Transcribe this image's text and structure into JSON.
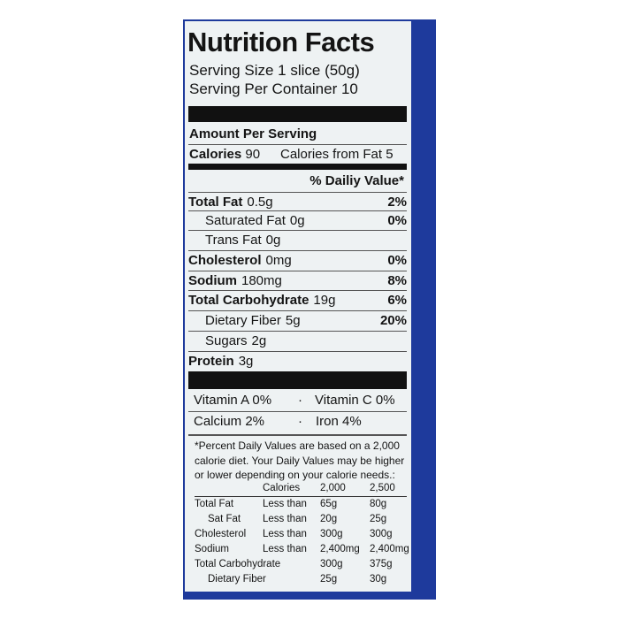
{
  "title": "Nutrition Facts",
  "serving_size": "Serving Size 1 slice (50g)",
  "servings_per_container": "Serving Per Container 10",
  "amount_per_serving": "Amount Per Serving",
  "calories_label": "Calories",
  "calories_value": "90",
  "calories_from_fat": "Calories from Fat 5",
  "daily_value_header": "% Dailiy Value*",
  "nutrients": [
    {
      "name": "Total Fat",
      "amount": "0.5g",
      "dv": "2%",
      "bold": true,
      "indent": false
    },
    {
      "name": "Saturated Fat",
      "amount": "0g",
      "dv": "0%",
      "bold": false,
      "indent": true
    },
    {
      "name": "Trans Fat",
      "amount": "0g",
      "dv": "",
      "bold": false,
      "indent": true
    },
    {
      "name": "Cholesterol",
      "amount": "0mg",
      "dv": "0%",
      "bold": true,
      "indent": false
    },
    {
      "name": "Sodium",
      "amount": "180mg",
      "dv": "8%",
      "bold": true,
      "indent": false
    },
    {
      "name": "Total Carbohydrate",
      "amount": "19g",
      "dv": "6%",
      "bold": true,
      "indent": false
    },
    {
      "name": "Dietary Fiber",
      "amount": "5g",
      "dv": "20%",
      "bold": false,
      "indent": true
    },
    {
      "name": "Sugars",
      "amount": "2g",
      "dv": "",
      "bold": false,
      "indent": true
    },
    {
      "name": "Protein",
      "amount": "3g",
      "dv": "",
      "bold": true,
      "indent": false
    }
  ],
  "vitamins": [
    [
      "Vitamin A 0%",
      "Vitamin C 0%"
    ],
    [
      "Calcium 2%",
      "Iron 4%"
    ]
  ],
  "footnote": [
    "*Percent Daily Values are based on a 2,000",
    "calorie diet. Your Daily Values may be higher",
    "or lower depending on your calorie needs.:"
  ],
  "dv_table": {
    "header": [
      "",
      "Calories",
      "2,000",
      "2,500"
    ],
    "rows": [
      [
        "Total Fat",
        "Less than",
        "65g",
        "80g"
      ],
      [
        "Sat Fat",
        "Less than",
        "20g",
        "25g"
      ],
      [
        "Cholesterol",
        "Less than",
        "300g",
        "300g"
      ],
      [
        "Sodium",
        "Less than",
        "2,400mg",
        "2,400mg"
      ],
      [
        "Total Carbohydrate",
        "",
        "300g",
        "375g"
      ],
      [
        "Dietary Fiber",
        "",
        "25g",
        "30g"
      ]
    ]
  },
  "colors": {
    "panel": "#eef2f3",
    "border_blue": "#1e3a9c",
    "ink": "#141414"
  }
}
